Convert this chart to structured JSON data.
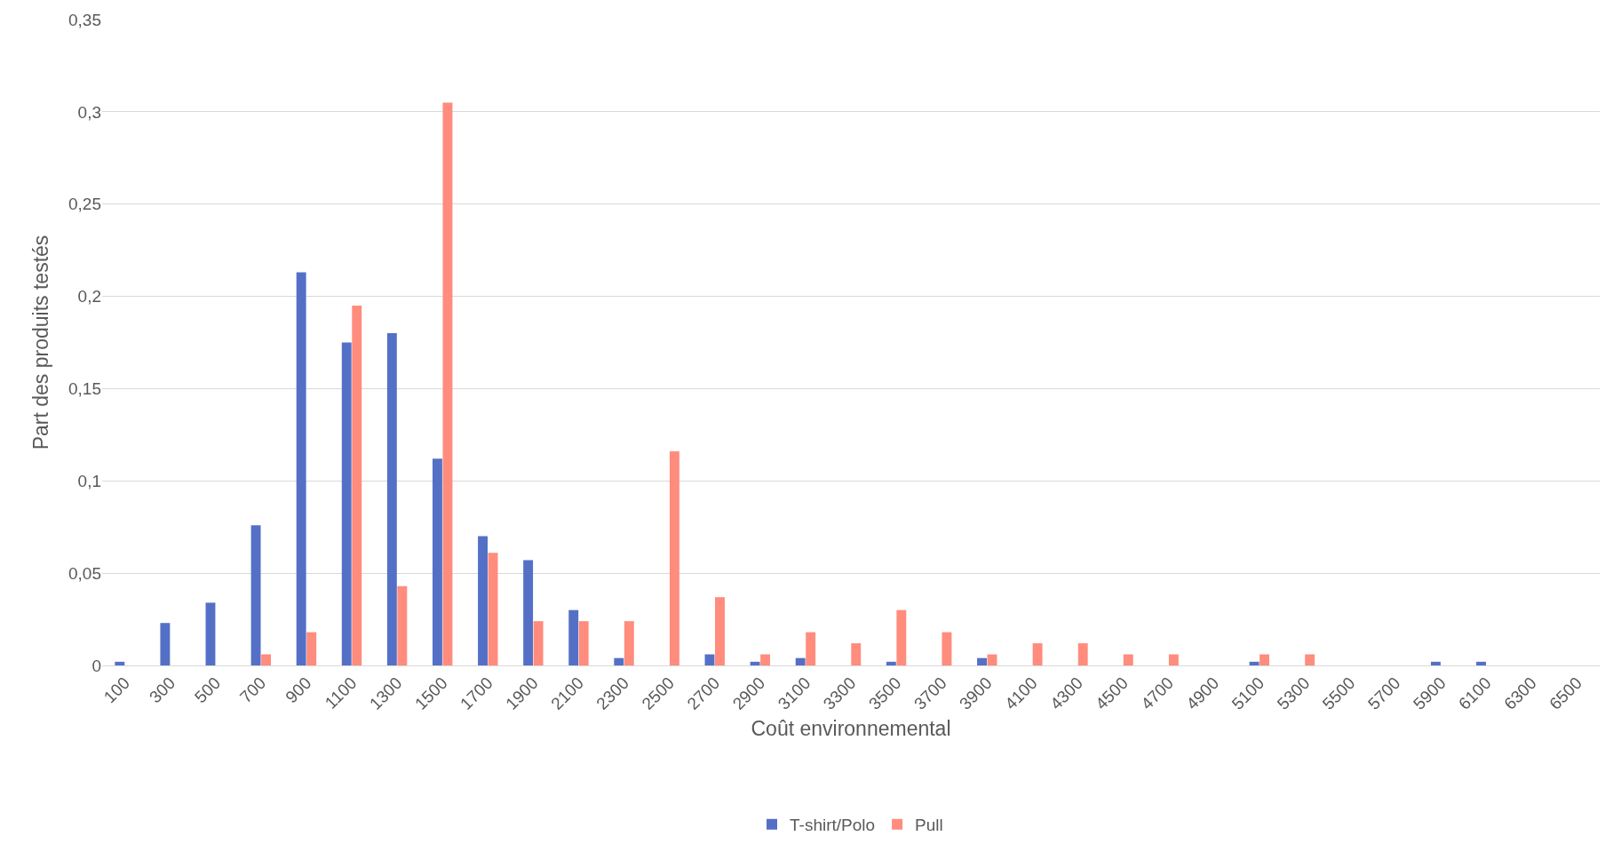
{
  "chart_data": {
    "type": "bar",
    "xlabel": "Coût environnemental",
    "ylabel": "Part des produits testés",
    "categories": [
      "100",
      "300",
      "500",
      "700",
      "900",
      "1100",
      "1300",
      "1500",
      "1700",
      "1900",
      "2100",
      "2300",
      "2500",
      "2700",
      "2900",
      "3100",
      "3300",
      "3500",
      "3700",
      "3900",
      "4100",
      "4300",
      "4500",
      "4700",
      "4900",
      "5100",
      "5300",
      "5500",
      "5700",
      "5900",
      "6100",
      "6300",
      "6500"
    ],
    "series": [
      {
        "name": "T-shirt/Polo",
        "color": "#5470c6",
        "values": [
          0.002,
          0.023,
          0.034,
          0.076,
          0.213,
          0.175,
          0.18,
          0.112,
          0.07,
          0.057,
          0.03,
          0.004,
          null,
          0.006,
          0.002,
          0.004,
          null,
          0.002,
          null,
          0.004,
          null,
          null,
          null,
          null,
          null,
          0.002,
          null,
          null,
          null,
          0.002,
          0.002,
          null,
          null
        ]
      },
      {
        "name": "Pull",
        "color": "#ff8c7d",
        "values": [
          null,
          null,
          null,
          0.006,
          0.018,
          0.195,
          0.043,
          0.305,
          0.061,
          0.024,
          0.024,
          0.024,
          0.116,
          0.037,
          0.006,
          0.018,
          0.012,
          0.03,
          0.018,
          0.006,
          0.012,
          0.012,
          0.006,
          0.006,
          null,
          0.006,
          0.006,
          null,
          null,
          null,
          null,
          null,
          null
        ]
      }
    ],
    "ylim": [
      0,
      0.35
    ],
    "yticks": [
      0,
      {
        "value": 0.05,
        "label": "0,05"
      },
      {
        "value": 0.1,
        "label": "0,1"
      },
      {
        "value": 0.15,
        "label": "0,15"
      },
      {
        "value": 0.2,
        "label": "0,2"
      },
      {
        "value": 0.25,
        "label": "0,25"
      },
      {
        "value": 0.3,
        "label": "0,3"
      },
      {
        "value": 0.35,
        "label": "0,35"
      }
    ],
    "grid": "y",
    "legend": "bottom"
  }
}
